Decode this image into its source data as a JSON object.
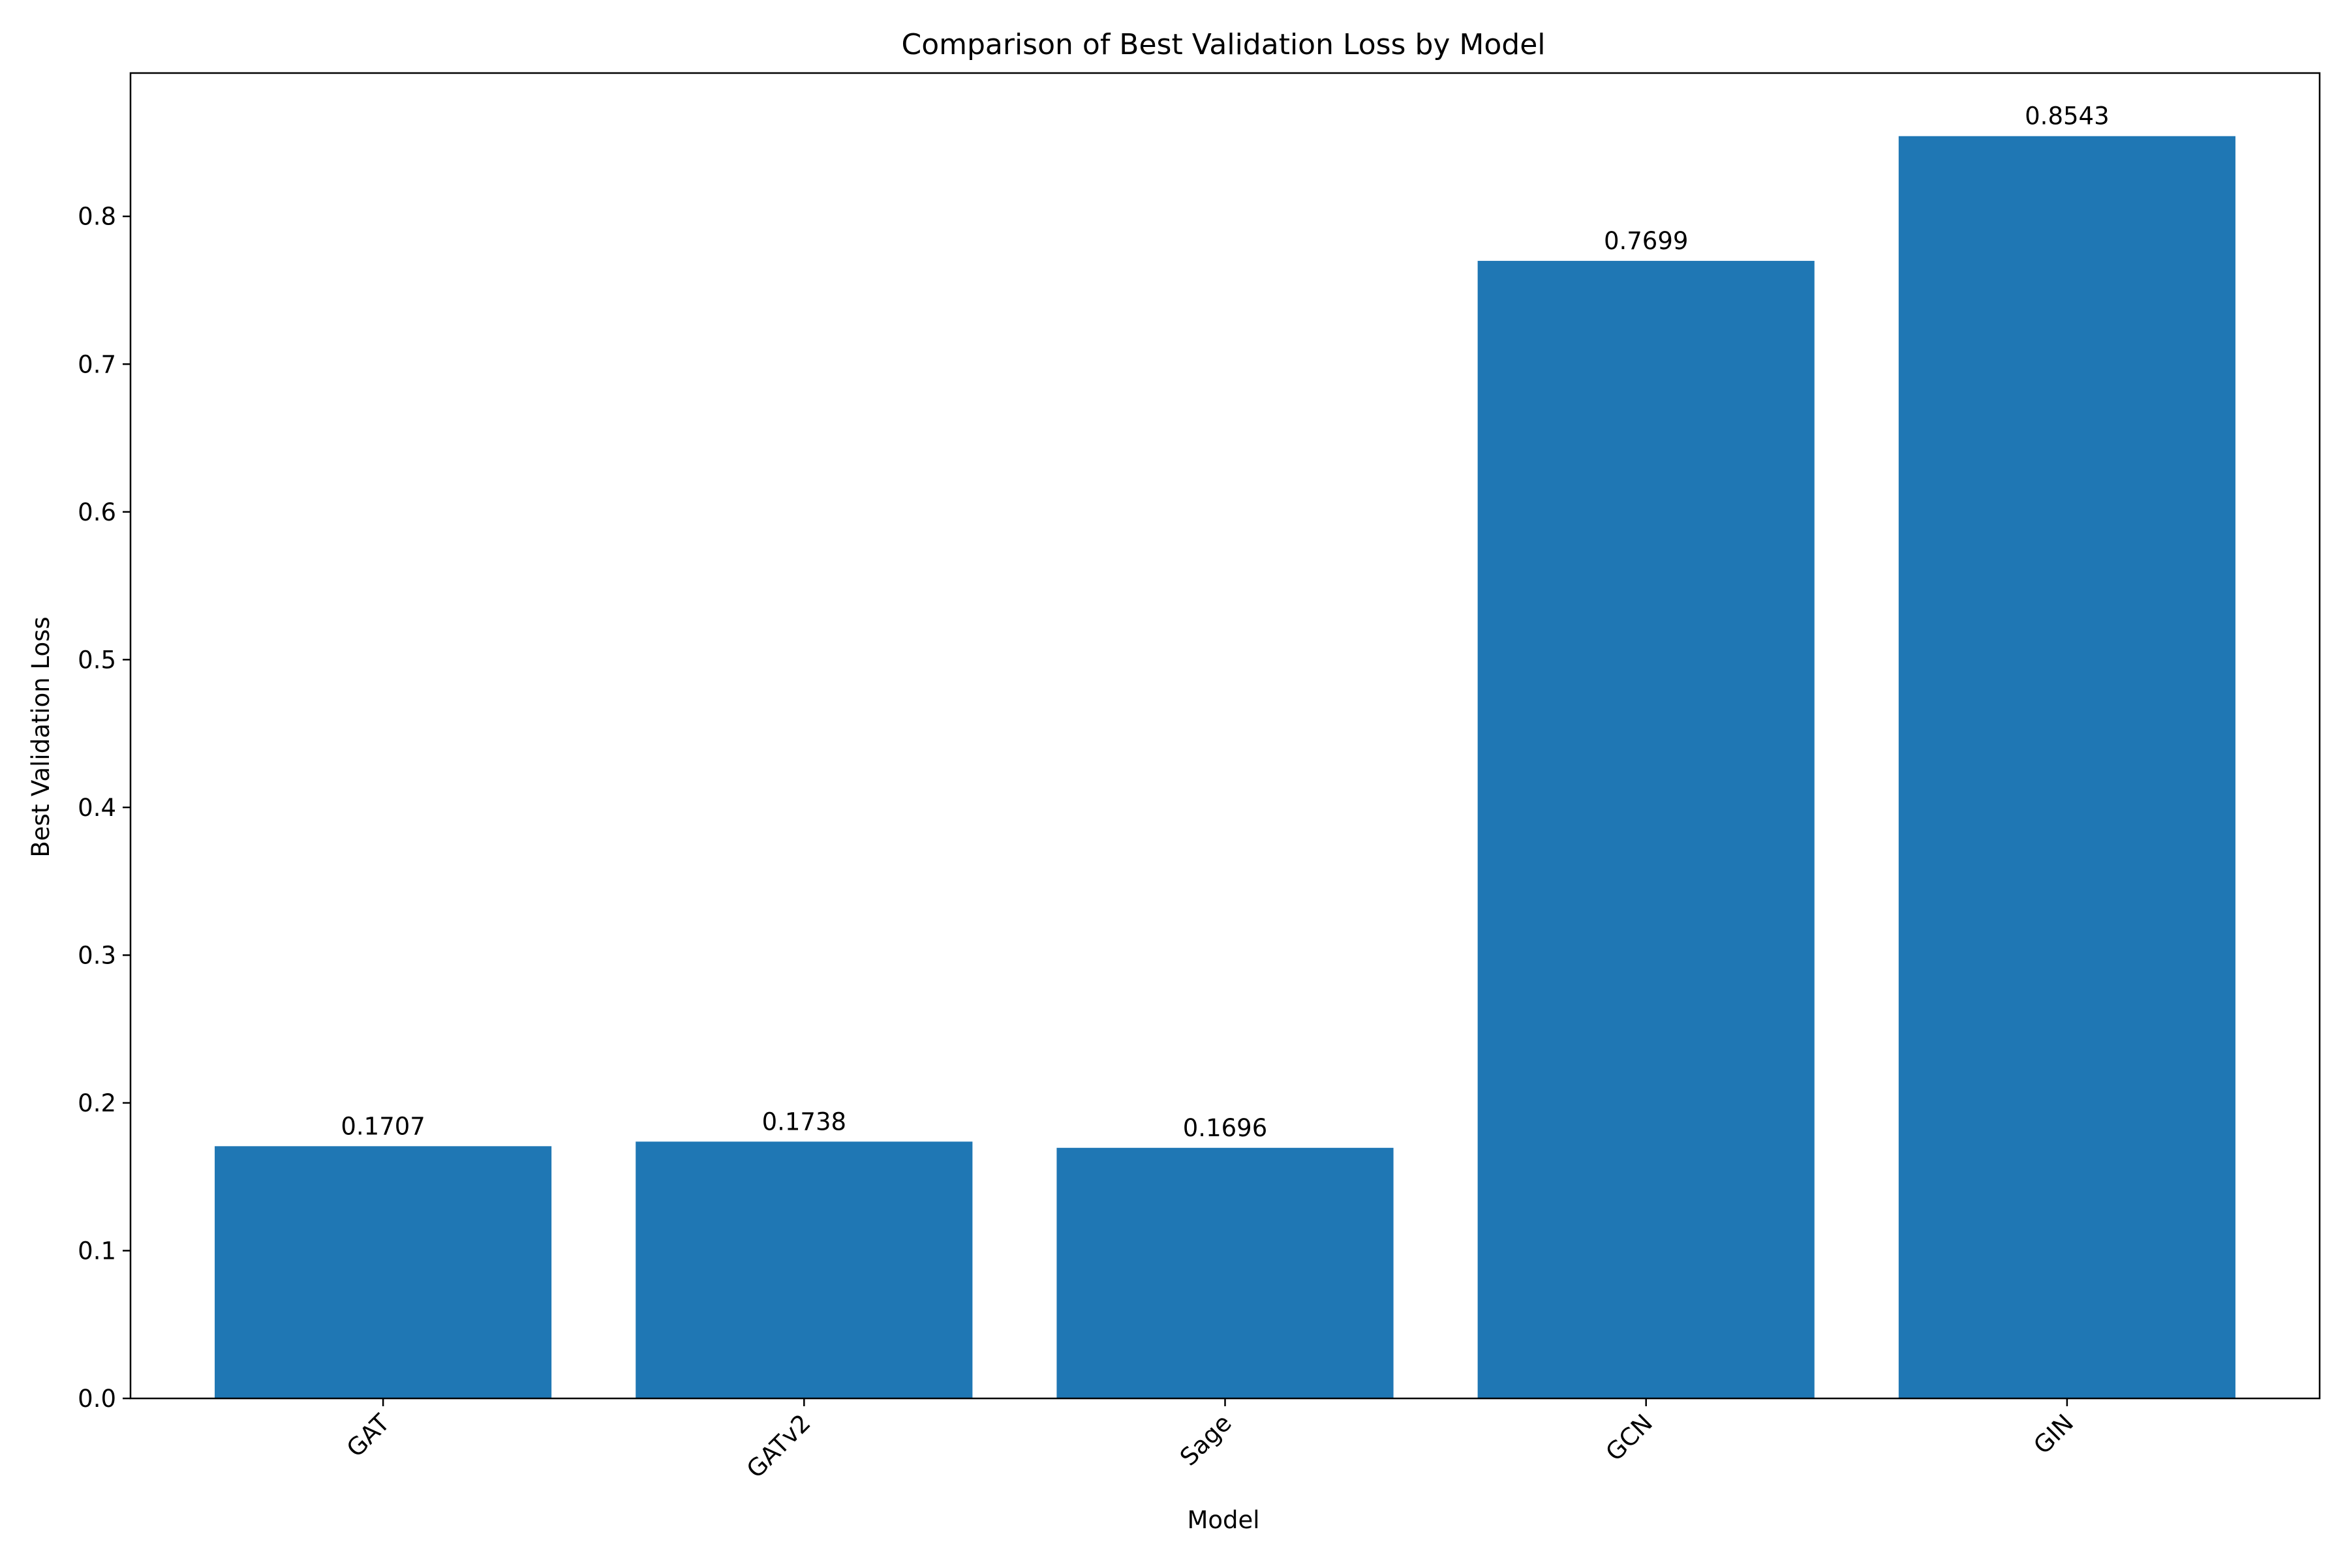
{
  "chart_data": {
    "type": "bar",
    "title": "Comparison of Best Validation Loss by Model",
    "xlabel": "Model",
    "ylabel": "Best Validation Loss",
    "categories": [
      "GAT",
      "GATv2",
      "Sage",
      "GCN",
      "GIN"
    ],
    "values": [
      0.1707,
      0.1738,
      0.1696,
      0.7699,
      0.8543
    ],
    "value_labels": [
      "0.1707",
      "0.1738",
      "0.1696",
      "0.7699",
      "0.8543"
    ],
    "ylim": [
      0,
      0.897
    ],
    "yticks": [
      "0.0",
      "0.1",
      "0.2",
      "0.3",
      "0.4",
      "0.5",
      "0.6",
      "0.7",
      "0.8"
    ],
    "grid": false,
    "legend": "none",
    "bar_color": "#1f77b4",
    "xtick_rotation_deg": 45
  }
}
